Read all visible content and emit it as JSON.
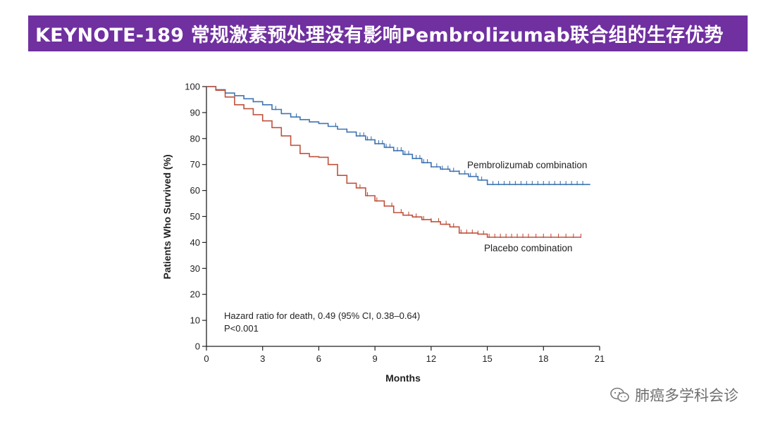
{
  "header": {
    "title": "KEYNOTE-189  常规激素预处理没有影响Pembrolizumab联合组的生存优势"
  },
  "chart_data": {
    "type": "line",
    "subtype": "kaplan-meier",
    "xlabel": "Months",
    "ylabel": "Patients Who Survived (%)",
    "xlim": [
      0,
      21
    ],
    "ylim": [
      0,
      100
    ],
    "xticks": [
      0,
      3,
      6,
      9,
      12,
      15,
      18,
      21
    ],
    "yticks": [
      0,
      10,
      20,
      30,
      40,
      50,
      60,
      70,
      80,
      90,
      100
    ],
    "grid": false,
    "series": [
      {
        "name": "Pembrolizumab combination",
        "color": "#3f74b1",
        "x": [
          0,
          0.5,
          1.0,
          1.5,
          2.0,
          2.5,
          3.0,
          3.5,
          4.0,
          4.5,
          5.0,
          5.5,
          6.0,
          6.5,
          7.0,
          7.5,
          8.0,
          8.5,
          9.0,
          9.5,
          10.0,
          10.5,
          11.0,
          11.5,
          12.0,
          12.5,
          13.0,
          13.5,
          14.0,
          14.5,
          15.0,
          16.0,
          17.0,
          18.0,
          19.0,
          20.0,
          20.5
        ],
        "y": [
          100,
          98.8,
          97.5,
          96.5,
          95.3,
          94.2,
          93.0,
          91.2,
          89.6,
          88.3,
          87.3,
          86.4,
          85.8,
          84.7,
          83.6,
          82.5,
          81.0,
          79.5,
          78.0,
          76.6,
          75.3,
          73.9,
          72.3,
          70.7,
          69.1,
          68.2,
          67.4,
          66.4,
          65.4,
          64.0,
          62.3,
          62.3,
          62.3,
          62.3,
          62.3,
          62.3,
          62.3
        ],
        "censor_x": [
          2.5,
          3.7,
          4.8,
          6.9,
          7.5,
          8.0,
          8.2,
          8.4,
          8.6,
          8.8,
          9.0,
          9.2,
          9.4,
          9.6,
          9.8,
          10.0,
          10.2,
          10.4,
          10.6,
          10.8,
          11.0,
          11.2,
          11.4,
          11.6,
          11.8,
          12.0,
          12.3,
          12.6,
          12.9,
          13.2,
          13.5,
          13.8,
          14.1,
          14.4,
          14.7,
          15.0,
          15.3,
          15.6,
          15.9,
          16.2,
          16.5,
          16.8,
          17.1,
          17.4,
          17.7,
          18.0,
          18.3,
          18.6,
          18.9,
          19.2,
          19.5,
          19.8,
          20.1
        ]
      },
      {
        "name": "Placebo combination",
        "color": "#c0513c",
        "x": [
          0,
          0.5,
          1.0,
          1.5,
          2.0,
          2.5,
          3.0,
          3.5,
          4.0,
          4.5,
          5.0,
          5.5,
          6.0,
          6.5,
          7.0,
          7.5,
          8.0,
          8.5,
          9.0,
          9.5,
          10.0,
          10.5,
          11.0,
          11.5,
          12.0,
          12.5,
          13.0,
          13.5,
          14.0,
          14.5,
          15.0,
          16.0,
          17.0,
          18.0,
          19.0,
          20.0
        ],
        "y": [
          100,
          98.6,
          96.0,
          93.0,
          91.5,
          89.2,
          86.8,
          84.2,
          81.0,
          77.4,
          74.2,
          73.0,
          72.8,
          70.0,
          65.8,
          62.8,
          61.0,
          58.0,
          56.0,
          54.0,
          51.5,
          50.5,
          49.8,
          48.8,
          48.0,
          47.0,
          46.0,
          43.6,
          43.6,
          43.2,
          42.0,
          42.0,
          42.0,
          42.0,
          42.0,
          42.0
        ],
        "censor_x": [
          8.2,
          8.6,
          9.1,
          9.5,
          9.9,
          10.4,
          10.8,
          11.2,
          11.6,
          12.0,
          12.4,
          12.8,
          13.2,
          13.6,
          13.9,
          14.2,
          14.5,
          14.8,
          15.1,
          15.4,
          15.7,
          16.0,
          16.3,
          16.6,
          16.9,
          17.2,
          17.6,
          18.0,
          18.4,
          18.8,
          19.2,
          19.6,
          20.0
        ]
      }
    ],
    "annotation": {
      "line1": "Hazard ratio for death, 0.49 (95% CI, 0.38–0.64)",
      "line2": "P<0.001"
    }
  },
  "watermark": {
    "icon": "wechat-icon",
    "text": "肺癌多学科会诊"
  }
}
